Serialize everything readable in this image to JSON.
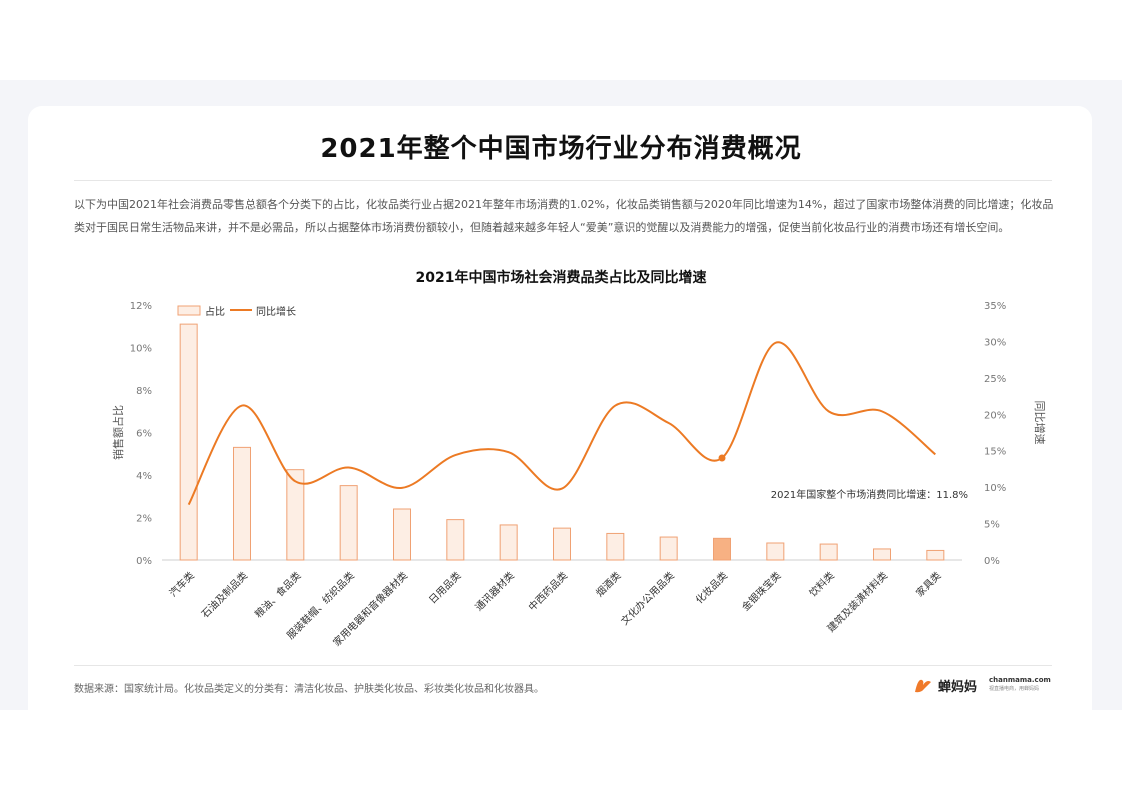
{
  "page": {
    "title": "2021年整个中国市场行业分布消费概况",
    "description": "以下为中国2021年社会消费品零售总额各个分类下的占比，化妆品类行业占据2021年整年市场消费的1.02%，化妆品类销售额与2020年同比增速为14%，超过了国家市场整体消费的同比增速；化妆品类对于国民日常生活物品来讲，并不是必需品，所以占据整体市场消费份额较小，但随着越来越多年轻人“爱美”意识的觉醒以及消费能力的增强，促使当前化妆品行业的消费市场还有增长空间。",
    "source": "数据来源：国家统计局。化妆品类定义的分类有：清洁化妆品、护肤类化妆品、彩妆类化妆品和化妆器具。"
  },
  "brand": {
    "name": "蝉妈妈",
    "domain": "chanmama.com",
    "slogan": "视直播电商，用蝉妈妈",
    "accent": "#f07a2a"
  },
  "chart_data": {
    "type": "bar",
    "title": "2021年中国市场社会消费品类占比及同比增速",
    "categories": [
      "汽车类",
      "石油及制品类",
      "粮油、食品类",
      "服装鞋帽、纺织品类",
      "家用电器和音像器材类",
      "日用品类",
      "通讯器材类",
      "中西药品类",
      "烟酒类",
      "文化办公用品类",
      "化妆品类",
      "金银珠宝类",
      "饮料类",
      "建筑及装潢材料类",
      "家具类"
    ],
    "series": [
      {
        "name": "占比",
        "type": "bar",
        "axis": "left",
        "values": [
          11.1,
          5.3,
          4.25,
          3.5,
          2.4,
          1.9,
          1.65,
          1.5,
          1.25,
          1.08,
          1.02,
          0.8,
          0.75,
          0.52,
          0.45
        ],
        "color": "#fdeee4",
        "stroke": "#f0a173",
        "highlight_index": 10,
        "highlight_color": "#f7b183"
      },
      {
        "name": "同比增长",
        "type": "line",
        "axis": "right",
        "values": [
          7.6,
          21.2,
          10.8,
          12.7,
          9.9,
          14.4,
          14.8,
          9.8,
          21.2,
          18.8,
          14.0,
          29.8,
          20.4,
          20.4,
          14.5
        ],
        "color": "#ec7a24",
        "marker_index": 10
      }
    ],
    "ylabel": "销售额占比",
    "y2label": "同比增速",
    "ylim": [
      0,
      12
    ],
    "y2lim": [
      0,
      35
    ],
    "yticks": [
      "0%",
      "2%",
      "4%",
      "6%",
      "8%",
      "10%",
      "12%"
    ],
    "y2ticks": [
      "0%",
      "5%",
      "10%",
      "15%",
      "20%",
      "25%",
      "30%",
      "35%"
    ],
    "annotation": "2021年国家整个市场消费同比增速：11.8%",
    "legend": "top-left",
    "grid": false
  }
}
